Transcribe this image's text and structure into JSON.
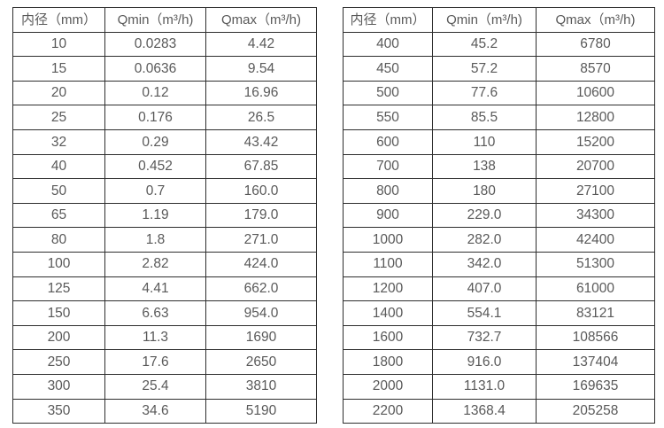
{
  "page": {
    "description_label": "flow-meter-diameter-flow-range-spec-tables"
  },
  "chart_data": [
    {
      "type": "table",
      "title": "",
      "columns": [
        "内径（mm）",
        "Qmin（m³/h)",
        "Qmax（m³/h)"
      ],
      "rows": [
        [
          "10",
          "0.0283",
          "4.42"
        ],
        [
          "15",
          "0.0636",
          "9.54"
        ],
        [
          "20",
          "0.12",
          "16.96"
        ],
        [
          "25",
          "0.176",
          "26.5"
        ],
        [
          "32",
          "0.29",
          "43.42"
        ],
        [
          "40",
          "0.452",
          "67.85"
        ],
        [
          "50",
          "0.7",
          "160.0"
        ],
        [
          "65",
          "1.19",
          "179.0"
        ],
        [
          "80",
          "1.8",
          "271.0"
        ],
        [
          "100",
          "2.82",
          "424.0"
        ],
        [
          "125",
          "4.41",
          "662.0"
        ],
        [
          "150",
          "6.63",
          "954.0"
        ],
        [
          "200",
          "11.3",
          "1690"
        ],
        [
          "250",
          "17.6",
          "2650"
        ],
        [
          "300",
          "25.4",
          "3810"
        ],
        [
          "350",
          "34.6",
          "5190"
        ]
      ]
    },
    {
      "type": "table",
      "title": "",
      "columns": [
        "内径（mm）",
        "Qmin（m³/h)",
        "Qmax（m³/h)"
      ],
      "rows": [
        [
          "400",
          "45.2",
          "6780"
        ],
        [
          "450",
          "57.2",
          "8570"
        ],
        [
          "500",
          "77.6",
          "10600"
        ],
        [
          "550",
          "85.5",
          "12800"
        ],
        [
          "600",
          "110",
          "15200"
        ],
        [
          "700",
          "138",
          "20700"
        ],
        [
          "800",
          "180",
          "27100"
        ],
        [
          "900",
          "229.0",
          "34300"
        ],
        [
          "1000",
          "282.0",
          "42400"
        ],
        [
          "1100",
          "342.0",
          "51300"
        ],
        [
          "1200",
          "407.0",
          "61000"
        ],
        [
          "1400",
          "554.1",
          "83121"
        ],
        [
          "1600",
          "732.7",
          "108566"
        ],
        [
          "1800",
          "916.0",
          "137404"
        ],
        [
          "2000",
          "1131.0",
          "169635"
        ],
        [
          "2200",
          "1368.4",
          "205258"
        ]
      ]
    }
  ],
  "colors": {
    "text": "#595959",
    "border": "#2e2e2e",
    "background": "#ffffff"
  }
}
